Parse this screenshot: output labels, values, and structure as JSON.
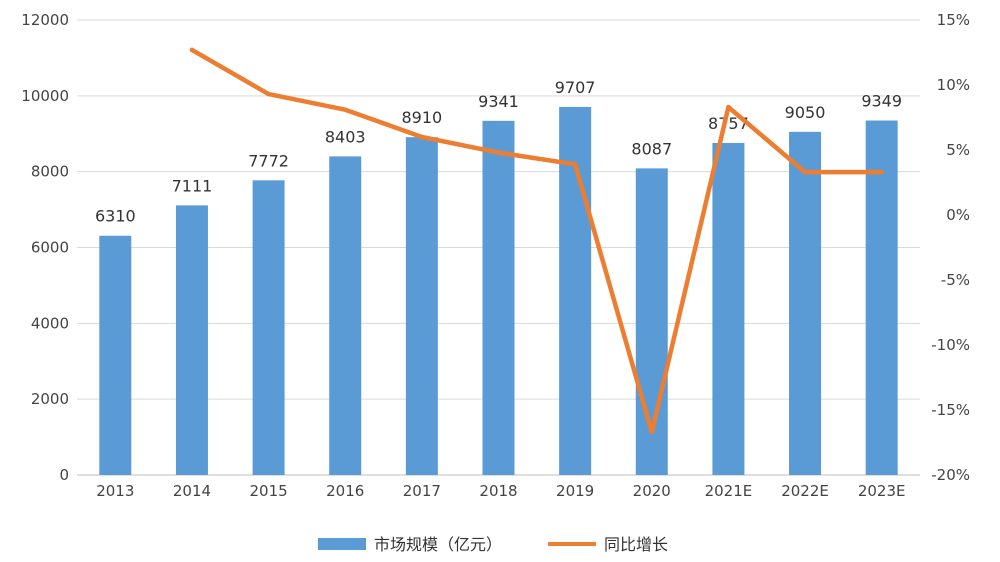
{
  "chart_data": {
    "type": "bar",
    "categories": [
      "2013",
      "2014",
      "2015",
      "2016",
      "2017",
      "2018",
      "2019",
      "2020",
      "2021E",
      "2022E",
      "2023E"
    ],
    "series": [
      {
        "name": "市场规模（亿元）",
        "type": "bar",
        "axis": "left",
        "color": "#5b9bd5",
        "values": [
          6310,
          7111,
          7772,
          8403,
          8910,
          9341,
          9707,
          8087,
          8757,
          9050,
          9349
        ]
      },
      {
        "name": "同比增长",
        "type": "line",
        "axis": "right",
        "color": "#ed7d31",
        "values": [
          null,
          12.7,
          9.3,
          8.1,
          6.0,
          4.8,
          3.9,
          -16.7,
          8.3,
          3.3,
          3.3
        ]
      }
    ],
    "y_left": {
      "ylim": [
        0,
        12000
      ],
      "ticks": [
        "0",
        "2000",
        "4000",
        "6000",
        "8000",
        "10000",
        "12000"
      ]
    },
    "y_right": {
      "ylim": [
        -20,
        15
      ],
      "ticks": [
        "-20%",
        "-15%",
        "-10%",
        "-5%",
        "0%",
        "5%",
        "10%",
        "15%"
      ]
    },
    "bar_labels": [
      "6310",
      "7111",
      "7772",
      "8403",
      "8910",
      "9341",
      "9707",
      "8087",
      "8757",
      "9050",
      "9349"
    ],
    "legend": {
      "position": "bottom",
      "items": [
        "市场规模（亿元）",
        "同比增长"
      ]
    },
    "grid": "horizontal",
    "title": "",
    "xlabel": "",
    "ylabel": ""
  }
}
